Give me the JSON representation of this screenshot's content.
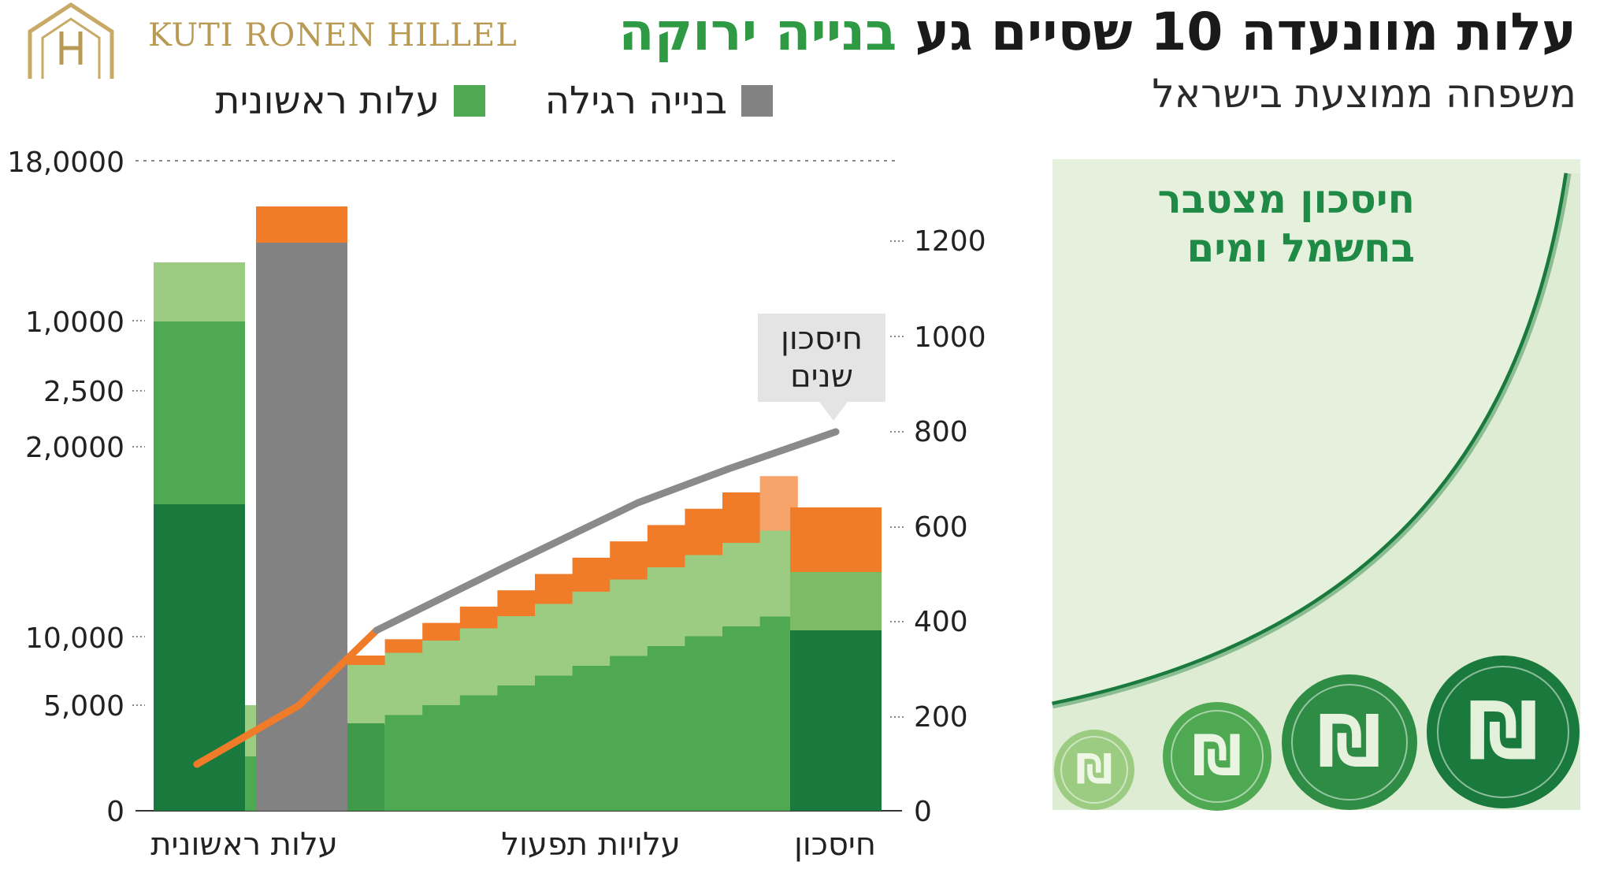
{
  "logo": {
    "text": "KUTI RONEN HILLEL"
  },
  "header": {
    "title_part1": "עלות מוונעדה 10 שסיים גע",
    "title_highlight": "בנייה ירוקה",
    "subtitle": "משפחה ממוצעת בישראל"
  },
  "legend": {
    "green_label": "עלות ראשונית",
    "gray_label": "בנייה רגילה"
  },
  "colors": {
    "dark_green": "#1a7a3d",
    "mid_green": "#4fa852",
    "light_green": "#9ccc82",
    "orange": "#f07c2a",
    "light_orange": "#f6a46a",
    "gray": "#828282",
    "panel_bg": "#e6f1dd"
  },
  "chart_data": {
    "type": "bar",
    "left_axis_ticks": [
      "18,0000",
      "1,0000",
      "2,500",
      "2,0000",
      "10,000",
      "5,000",
      "0"
    ],
    "right_axis_ticks": [
      "1200",
      "1000",
      "800",
      "600",
      "400",
      "200",
      "0"
    ],
    "categories": [
      "עלות ראשונית",
      "עלויות תפעול",
      "חיסכון"
    ],
    "annotation": "חיסכון שנים",
    "line_series": [
      {
        "name": "orange-line",
        "values": [
          100,
          220,
          380
        ]
      },
      {
        "name": "gray-line",
        "values": [
          380,
          520,
          640,
          730,
          800
        ]
      }
    ],
    "operating_steps": 12,
    "panel_title_line1": "חיסכון מצטבר",
    "panel_title_line2": "בחשמל ומים",
    "coin_symbol": "₪"
  }
}
